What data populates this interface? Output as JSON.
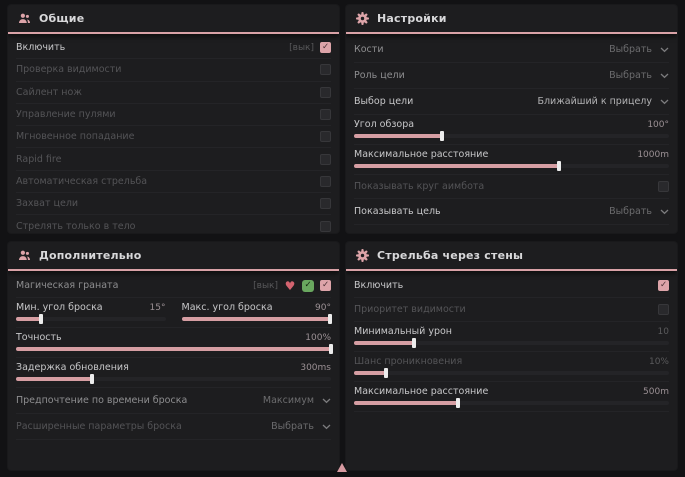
{
  "colors": {
    "accent": "#d9a2a7",
    "panel_bg": "#1d1d1f",
    "page_bg": "#121214"
  },
  "icons": {
    "check": "✓",
    "heart": "♥"
  },
  "panels": {
    "general": {
      "title": "Общие",
      "rows": [
        {
          "label": "Включить",
          "hint": "[вык]",
          "checked": true
        },
        {
          "label": "Проверка видимости",
          "checked": false
        },
        {
          "label": "Сайлент нож",
          "checked": false
        },
        {
          "label": "Управление пулями",
          "checked": false
        },
        {
          "label": "Мгновенное попадание",
          "checked": false
        },
        {
          "label": "Rapid fire",
          "checked": false
        },
        {
          "label": "Автоматическая стрельба",
          "checked": false
        },
        {
          "label": "Захват цели",
          "checked": false
        },
        {
          "label": "Стрелять только в тело",
          "checked": false
        }
      ]
    },
    "settings": {
      "title": "Настройки",
      "rows": {
        "bones": {
          "label": "Кости",
          "value": "Выбрать"
        },
        "target_role": {
          "label": "Роль цели",
          "value": "Выбрать"
        },
        "target_select": {
          "label": "Выбор цели",
          "value": "Ближайший к прицелу"
        },
        "fov": {
          "label": "Угол обзора",
          "value": "100°",
          "fill": 28
        },
        "max_distance": {
          "label": "Максимальное расстояние",
          "value": "1000m",
          "fill": 65
        },
        "show_circle": {
          "label": "Показывать круг аимбота",
          "checked": false
        },
        "show_target": {
          "label": "Показывать цель",
          "value": "Выбрать"
        }
      }
    },
    "additional": {
      "title": "Дополнительно",
      "rows": {
        "magic_grenade": {
          "label": "Магическая граната",
          "hint": "[вык]",
          "checked": true
        },
        "min_throw": {
          "label": "Мин. угол броска",
          "value": "15°",
          "fill": 17
        },
        "max_throw": {
          "label": "Макс. угол броска",
          "value": "90°",
          "fill": 99
        },
        "accuracy": {
          "label": "Точность",
          "value": "100%",
          "fill": 100
        },
        "update_delay": {
          "label": "Задержка обновления",
          "value": "300ms",
          "fill": 24
        },
        "throw_time": {
          "label": "Предпочтение по времени броска",
          "value": "Максимум"
        },
        "advanced": {
          "label": "Расширенные параметры броска",
          "value": "Выбрать"
        }
      }
    },
    "wallbang": {
      "title": "Стрельба через стены",
      "rows": {
        "enable": {
          "label": "Включить",
          "checked": true
        },
        "visibility_priority": {
          "label": "Приоритет видимости",
          "checked": false
        },
        "min_damage": {
          "label": "Минимальный урон",
          "value": "10",
          "fill": 19
        },
        "penetration_chance": {
          "label": "Шанс проникновения",
          "value": "10%",
          "fill": 10
        },
        "max_distance": {
          "label": "Максимальное расстояние",
          "value": "500m",
          "fill": 33
        }
      }
    }
  }
}
